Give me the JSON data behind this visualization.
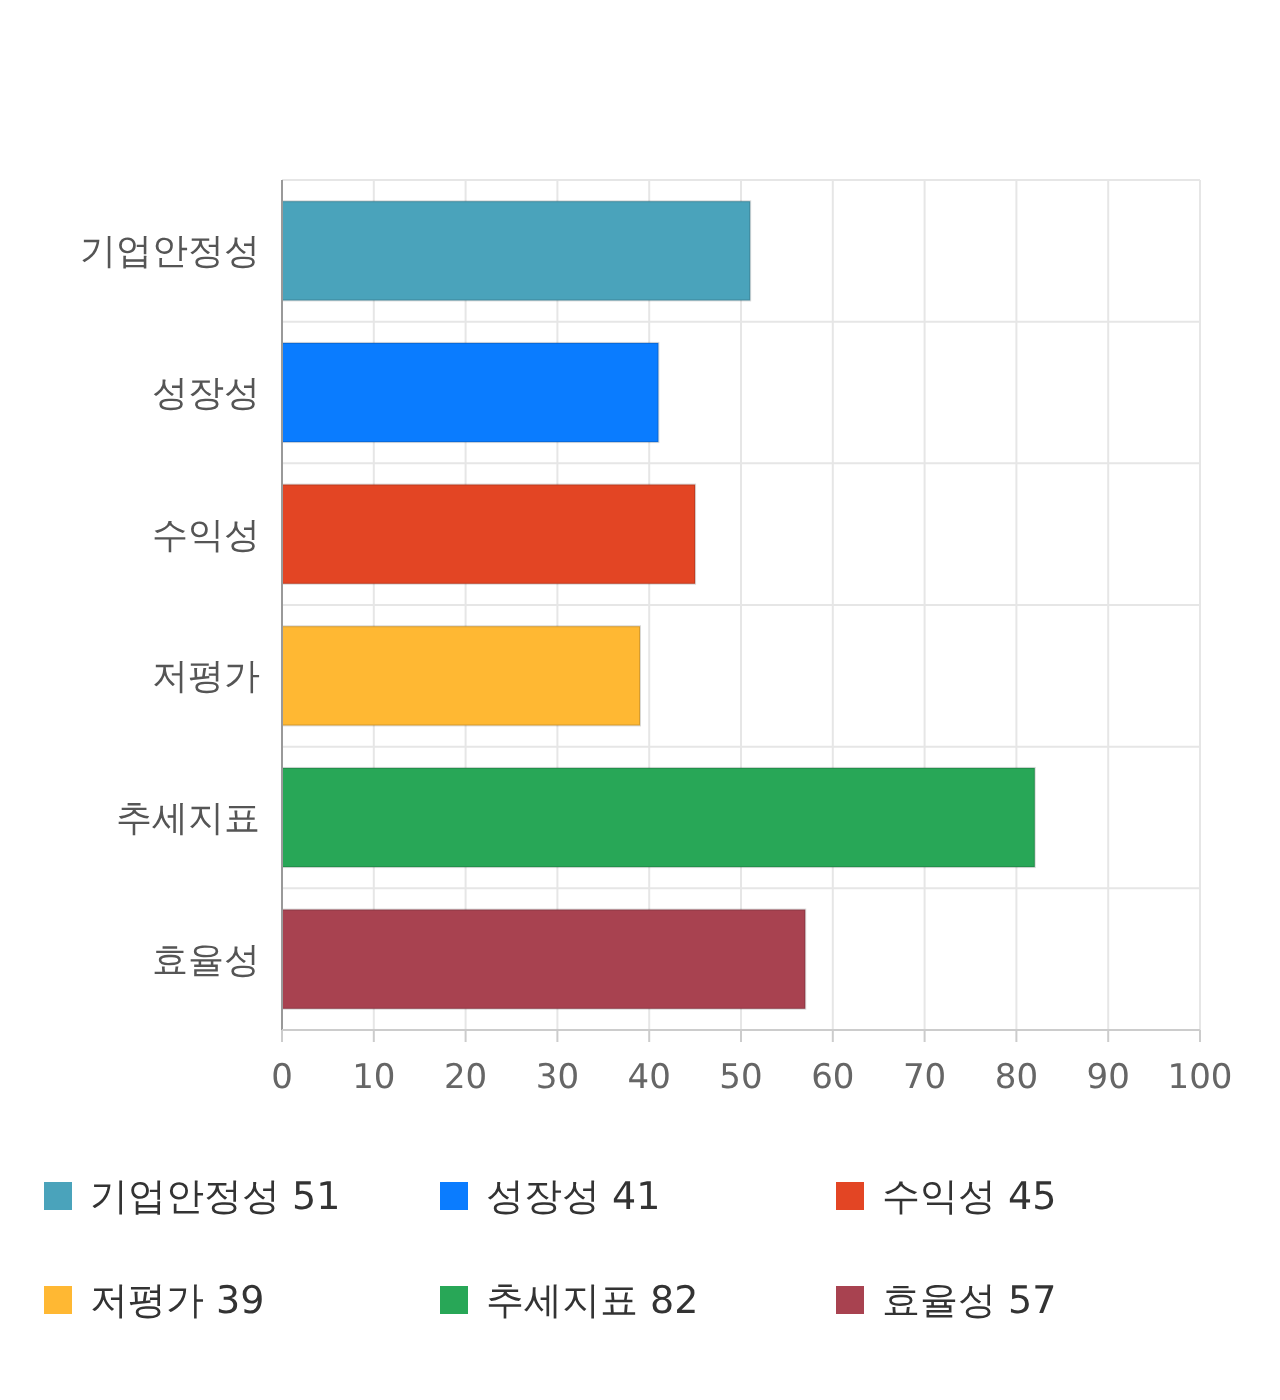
{
  "chart_data": {
    "type": "bar",
    "orientation": "horizontal",
    "stacked": true,
    "categories": [
      "기업안정성",
      "성장성",
      "수익성",
      "저평가",
      "추세지표",
      "효율성"
    ],
    "series": [
      {
        "name": "기업안정성 51",
        "color": "#4aa3bb",
        "values": [
          51,
          null,
          null,
          null,
          null,
          null
        ]
      },
      {
        "name": "성장성 41",
        "color": "#0a7cff",
        "values": [
          null,
          41,
          null,
          null,
          null,
          null
        ]
      },
      {
        "name": "수익성 45",
        "color": "#e34524",
        "values": [
          null,
          null,
          45,
          null,
          null,
          null
        ]
      },
      {
        "name": "저평가 39",
        "color": "#ffb833",
        "values": [
          null,
          null,
          null,
          39,
          null,
          null
        ]
      },
      {
        "name": "추세지표 82",
        "color": "#28a757",
        "values": [
          null,
          null,
          null,
          null,
          82,
          null
        ]
      },
      {
        "name": "효율성 57",
        "color": "#a84250",
        "values": [
          null,
          null,
          null,
          null,
          null,
          57
        ]
      }
    ],
    "xlim": [
      0,
      100
    ],
    "xticks": [
      0,
      10,
      20,
      30,
      40,
      50,
      60,
      70,
      80,
      90,
      100
    ],
    "grid": true,
    "legend": "bottom"
  }
}
